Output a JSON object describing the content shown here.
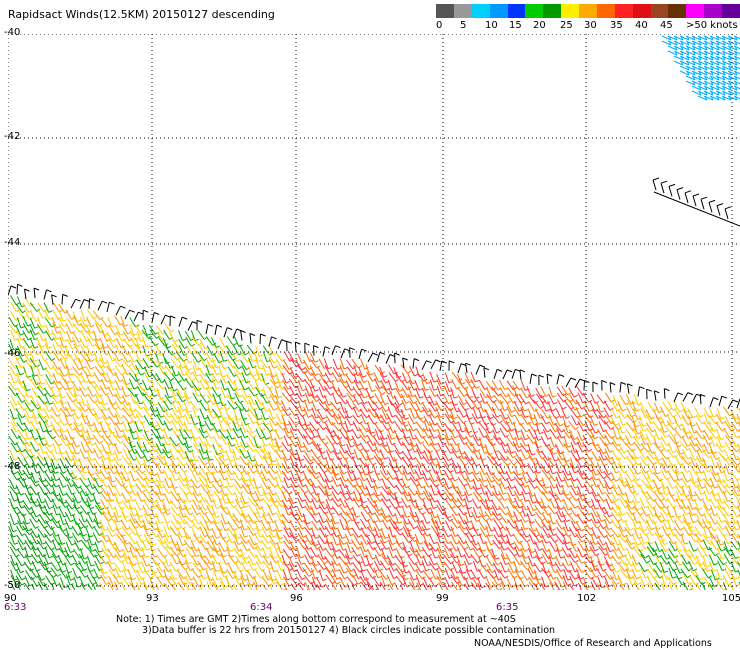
{
  "title": "Rapidsact Winds(12.5KM) 20150127 descending",
  "legend": {
    "colors": [
      "#555555",
      "#999999",
      "#00d0ff",
      "#0099ff",
      "#0033ff",
      "#00cc00",
      "#009900",
      "#ffee00",
      "#ffaa00",
      "#ff6600",
      "#ff2222",
      "#dd1111",
      "#994422",
      "#663300",
      "#ff00ff",
      "#aa00cc",
      "#660099"
    ],
    "labels": [
      "0",
      "5",
      "10",
      "15",
      "20",
      "25",
      "30",
      "35",
      "40",
      "45",
      ">50 knots"
    ]
  },
  "map": {
    "lat_labels": [
      "-40",
      "-42",
      "-44",
      "-46",
      "-48",
      "-50"
    ],
    "lon_labels": [
      "90",
      "93",
      "96",
      "99",
      "102",
      "105"
    ],
    "time_labels": [
      "6:33",
      "6:34",
      "6:35"
    ],
    "lon_range": [
      90,
      105
    ],
    "lat_range": [
      -40,
      -50
    ]
  },
  "notes": {
    "line1": "Note: 1) Times are GMT 2)Times along bottom correspond to measurement at ~40S",
    "line2": "3)Data buffer is 22 hrs from 20150127 4) Black circles indicate possible contamination",
    "credit": "NOAA/NESDIS/Office of Research and Applications"
  }
}
